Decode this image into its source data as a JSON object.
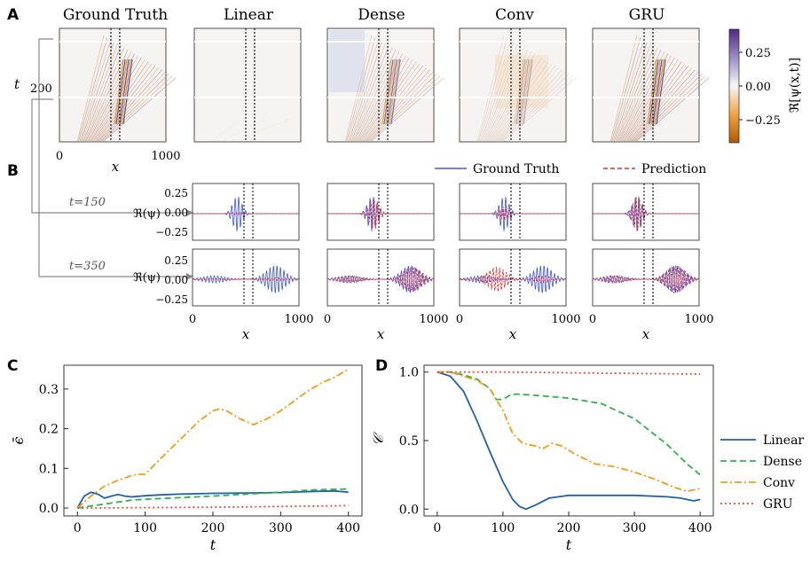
{
  "panel_labels": {
    "a": "A",
    "b": "B",
    "c": "C",
    "d": "D"
  },
  "models": [
    "Ground Truth",
    "Linear",
    "Dense",
    "Conv",
    "GRU"
  ],
  "colorbar": {
    "label": "ℜ[ψ(x,t)]",
    "ticks": [
      "0.25",
      "0.00",
      "−0.25"
    ],
    "min": -0.4,
    "max": 0.4,
    "low_color": "#b35806",
    "high_color": "#542788"
  },
  "heatmap_axes": {
    "xlabel": "x",
    "ylabel": "t",
    "xticks": [
      "0",
      "1000"
    ],
    "yticks": [
      "200"
    ]
  },
  "snapshot_axes": {
    "xlabel": "x",
    "ylabel": "ℜ(ψ)",
    "xticks": [
      "0",
      "1000"
    ],
    "yticks": [
      "0.25",
      "0.00",
      "−0.25"
    ],
    "times": [
      "t=150",
      "t=350"
    ]
  },
  "legend_b": {
    "gt": "Ground Truth",
    "pred": "Prediction",
    "gt_color": "#3b5bdb",
    "pred_color": "#e03131"
  },
  "chart_data": [
    {
      "id": "C",
      "type": "line",
      "xlabel": "t",
      "ylabel": "ϵ̄",
      "xlim": [
        -20,
        420
      ],
      "ylim": [
        -0.02,
        0.36
      ],
      "xticks": [
        "0",
        "100",
        "200",
        "300",
        "400"
      ],
      "yticks": [
        "0.0",
        "0.1",
        "0.2",
        "0.3"
      ],
      "xtick_values": [
        0,
        100,
        200,
        300,
        400
      ],
      "ytick_values": [
        0.0,
        0.1,
        0.2,
        0.3
      ],
      "series": [
        {
          "name": "Linear",
          "color": "#1f5fae",
          "dash": "",
          "x": [
            0,
            10,
            20,
            30,
            40,
            50,
            60,
            70,
            80,
            100,
            120,
            150,
            200,
            250,
            300,
            350,
            380,
            400
          ],
          "y": [
            0.0,
            0.03,
            0.04,
            0.035,
            0.025,
            0.03,
            0.034,
            0.03,
            0.028,
            0.031,
            0.033,
            0.035,
            0.037,
            0.038,
            0.039,
            0.042,
            0.043,
            0.04
          ]
        },
        {
          "name": "Dense",
          "color": "#2fb24a",
          "dash": "7,4",
          "x": [
            0,
            20,
            40,
            60,
            80,
            100,
            150,
            200,
            250,
            300,
            350,
            400
          ],
          "y": [
            0.0,
            0.005,
            0.01,
            0.015,
            0.02,
            0.022,
            0.026,
            0.03,
            0.035,
            0.04,
            0.046,
            0.048
          ]
        },
        {
          "name": "Conv",
          "color": "#f39c12",
          "dash": "8,3,2,3",
          "x": [
            0,
            20,
            40,
            60,
            80,
            90,
            100,
            120,
            150,
            180,
            200,
            210,
            220,
            240,
            260,
            280,
            300,
            320,
            340,
            360,
            380,
            400
          ],
          "y": [
            0.0,
            0.03,
            0.055,
            0.07,
            0.082,
            0.085,
            0.085,
            0.12,
            0.17,
            0.22,
            0.245,
            0.25,
            0.245,
            0.225,
            0.21,
            0.225,
            0.245,
            0.27,
            0.295,
            0.315,
            0.33,
            0.35
          ]
        },
        {
          "name": "GRU",
          "color": "#e74c3c",
          "dash": "2,3",
          "x": [
            0,
            100,
            200,
            300,
            400
          ],
          "y": [
            0.0,
            0.001,
            0.002,
            0.004,
            0.006
          ]
        }
      ]
    },
    {
      "id": "D",
      "type": "line",
      "xlabel": "t",
      "ylabel": "𝒞",
      "xlim": [
        -20,
        420
      ],
      "ylim": [
        -0.05,
        1.05
      ],
      "xticks": [
        "0",
        "100",
        "200",
        "300",
        "400"
      ],
      "yticks": [
        "0.0",
        "0.5",
        "1.0"
      ],
      "xtick_values": [
        0,
        100,
        200,
        300,
        400
      ],
      "ytick_values": [
        0.0,
        0.5,
        1.0
      ],
      "series": [
        {
          "name": "Linear",
          "color": "#1f5fae",
          "dash": "",
          "x": [
            0,
            20,
            40,
            60,
            80,
            100,
            115,
            125,
            135,
            150,
            170,
            200,
            250,
            300,
            350,
            370,
            390,
            400
          ],
          "y": [
            1.0,
            0.97,
            0.86,
            0.65,
            0.42,
            0.2,
            0.07,
            0.02,
            0.0,
            0.03,
            0.08,
            0.1,
            0.1,
            0.1,
            0.09,
            0.08,
            0.06,
            0.07
          ]
        },
        {
          "name": "Dense",
          "color": "#2fb24a",
          "dash": "7,4",
          "x": [
            0,
            20,
            40,
            60,
            80,
            90,
            100,
            110,
            120,
            150,
            200,
            250,
            300,
            350,
            380,
            400
          ],
          "y": [
            1.0,
            1.0,
            0.98,
            0.95,
            0.88,
            0.8,
            0.8,
            0.83,
            0.84,
            0.83,
            0.81,
            0.77,
            0.66,
            0.47,
            0.33,
            0.25
          ]
        },
        {
          "name": "Conv",
          "color": "#f39c12",
          "dash": "8,3,2,3",
          "x": [
            0,
            20,
            40,
            60,
            80,
            100,
            115,
            130,
            150,
            160,
            175,
            190,
            210,
            240,
            270,
            300,
            330,
            360,
            380,
            400
          ],
          "y": [
            1.0,
            1.0,
            0.97,
            0.94,
            0.88,
            0.72,
            0.55,
            0.48,
            0.46,
            0.44,
            0.48,
            0.46,
            0.4,
            0.33,
            0.31,
            0.27,
            0.22,
            0.16,
            0.13,
            0.15
          ]
        },
        {
          "name": "GRU",
          "color": "#e74c3c",
          "dash": "2,3",
          "x": [
            0,
            100,
            200,
            300,
            400
          ],
          "y": [
            1.0,
            1.0,
            0.995,
            0.99,
            0.985
          ]
        }
      ],
      "legend": [
        "Linear",
        "Dense",
        "Conv",
        "GRU"
      ]
    }
  ]
}
